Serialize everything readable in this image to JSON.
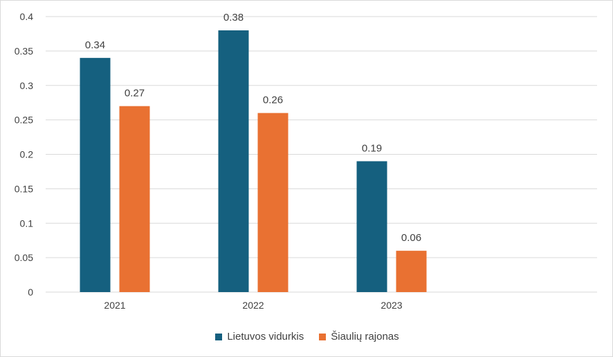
{
  "chart_data": {
    "type": "bar",
    "categories": [
      "2021",
      "2022",
      "2023"
    ],
    "series": [
      {
        "name": "Lietuvos vidurkis",
        "values": [
          0.34,
          0.38,
          0.19
        ],
        "labels": [
          "0.34",
          "0.38",
          "0.19"
        ],
        "color": "#15607f"
      },
      {
        "name": "Šiaulių rajonas",
        "values": [
          0.27,
          0.26,
          0.06
        ],
        "labels": [
          "0.27",
          "0.26",
          "0.06"
        ],
        "color": "#e97132"
      }
    ],
    "ylim": [
      0,
      0.4
    ],
    "yticks": [
      0,
      0.05,
      0.1,
      0.15,
      0.2,
      0.25,
      0.3,
      0.35,
      0.4
    ],
    "ytick_labels": [
      "0",
      "0.05",
      "0.1",
      "0.15",
      "0.2",
      "0.25",
      "0.3",
      "0.35",
      "0.4"
    ],
    "grid": true,
    "legend_position": "bottom",
    "gridline_color": "#d9d9d9"
  }
}
